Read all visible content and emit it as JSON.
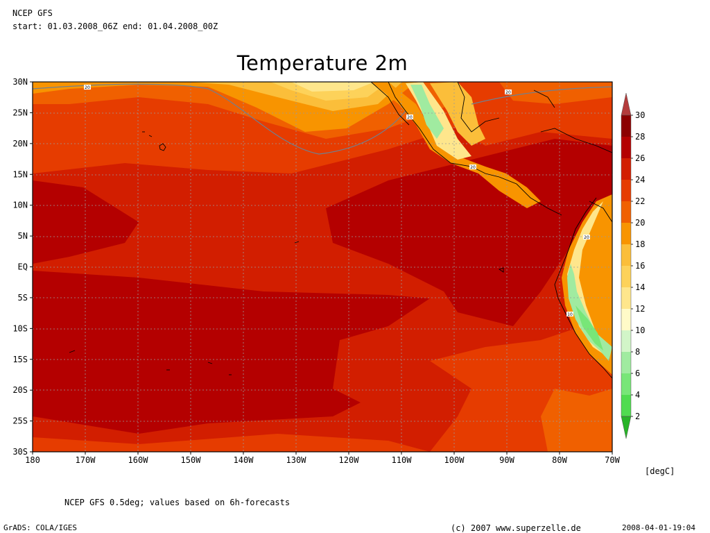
{
  "header": {
    "model": "NCEP GFS",
    "period": "start: 01.03.2008_06Z end: 01.04.2008_00Z"
  },
  "title": "Temperature 2m",
  "map": {
    "region": "Eastern Pacific",
    "lat_range": [
      -30,
      30
    ],
    "lon_range": [
      -180,
      -70
    ],
    "lat_labels": [
      "30N",
      "25N",
      "20N",
      "15N",
      "10N",
      "5N",
      "EQ",
      "5S",
      "10S",
      "15S",
      "20S",
      "25S",
      "30S"
    ],
    "lon_labels": [
      "180",
      "170W",
      "160W",
      "150W",
      "140W",
      "130W",
      "120W",
      "110W",
      "100W",
      "90W",
      "80W",
      "70W"
    ],
    "contour_labels": [
      "20",
      "20",
      "20",
      "20",
      "20",
      "10"
    ],
    "grid": true
  },
  "colorbar": {
    "unit": "[degC]",
    "ticks": [
      "30",
      "28",
      "26",
      "24",
      "22",
      "20",
      "18",
      "16",
      "14",
      "12",
      "10",
      "8",
      "6",
      "4",
      "2"
    ],
    "colors": [
      "#b43c3c",
      "#8c0000",
      "#b40000",
      "#d21e00",
      "#e63c00",
      "#f06000",
      "#f89400",
      "#fbbe3a",
      "#fdd25a",
      "#fee68c",
      "#fffac8",
      "#d2f5c8",
      "#a0eba0",
      "#78e678",
      "#50dc50",
      "#32cd32",
      "#28b428"
    ]
  },
  "footer": {
    "note": "NCEP GFS 0.5deg; values based on 6h-forecasts",
    "grads": "GrADS: COLA/IGES",
    "copyright": "(c) 2007 www.superzelle.de",
    "timestamp": "2008-04-01-19:04"
  }
}
